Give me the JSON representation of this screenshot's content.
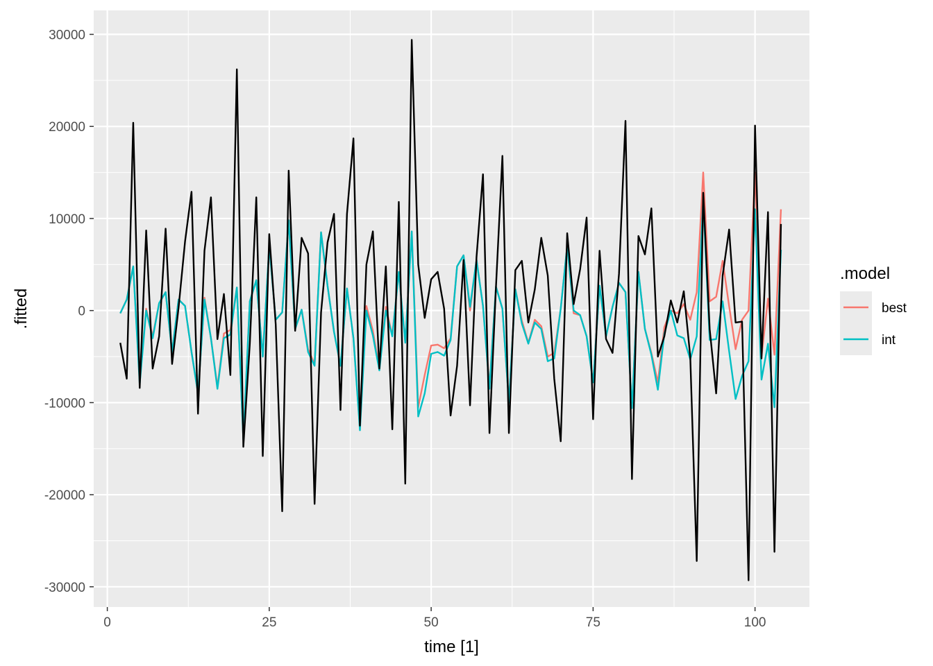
{
  "chart_data": {
    "type": "line",
    "xlabel": "time [1]",
    "ylabel": ".fitted",
    "xlim": [
      -2.1,
      108.4
    ],
    "ylim": [
      -32200,
      32600
    ],
    "x_ticks": [
      0,
      25,
      50,
      75,
      100
    ],
    "x_tick_labels": [
      "0",
      "25",
      "50",
      "75",
      "100"
    ],
    "y_ticks": [
      -30000,
      -20000,
      -10000,
      0,
      10000,
      20000,
      30000
    ],
    "y_tick_labels": [
      "-30000",
      "-20000",
      "-10000",
      "0",
      "10000",
      "20000",
      "30000"
    ],
    "grid": true,
    "panel_background": "#ebebeb",
    "legend": {
      "title": ".model",
      "placement": "right",
      "entries": [
        {
          "label": "best",
          "color": "#f8766d"
        },
        {
          "label": "int",
          "color": "#00bfc4"
        }
      ]
    },
    "x_start": 2,
    "series": [
      {
        "name": "best",
        "color": "#f8766d",
        "values": [
          -300,
          1200,
          4800,
          -7500,
          200,
          -2800,
          800,
          2000,
          -4500,
          1200,
          500,
          -4500,
          -9000,
          1400,
          -3000,
          -8300,
          -2500,
          -2100,
          2500,
          -14000,
          1000,
          3300,
          -5000,
          7000,
          -1000,
          -200,
          9800,
          -2000,
          100,
          -4200,
          -5800,
          8500,
          2700,
          -2300,
          -6000,
          2400,
          -3000,
          -12700,
          500,
          -2200,
          -6300,
          400,
          -2700,
          4200,
          -3400,
          8600,
          -10500,
          -7000,
          -3800,
          -3700,
          -4100,
          -3000,
          4800,
          6000,
          0,
          5500,
          500,
          -8200,
          2600,
          200,
          -10000,
          2300,
          -1100,
          -3500,
          -1000,
          -1700,
          -5000,
          -4600,
          200,
          7000,
          -300,
          -500,
          -2800,
          -7800,
          2700,
          -2800,
          400,
          3000,
          2000,
          -10600,
          4200,
          -2000,
          -4600,
          -7800,
          -1800,
          0,
          -300,
          700,
          -1000,
          2000,
          15000,
          1000,
          1500,
          5400,
          500,
          -4200,
          -1000,
          0,
          15000,
          -5000,
          1300,
          -4800,
          11000
        ]
      },
      {
        "name": "int",
        "color": "#00bfc4",
        "values": [
          -300,
          1200,
          4800,
          -8000,
          0,
          -3000,
          800,
          2000,
          -4500,
          1200,
          500,
          -4500,
          -9000,
          1200,
          -3000,
          -8500,
          -3000,
          -2600,
          2500,
          -14000,
          1000,
          3300,
          -5000,
          7000,
          -1000,
          -200,
          9800,
          -2000,
          100,
          -4500,
          -6000,
          8500,
          2700,
          -2300,
          -6000,
          2400,
          -3000,
          -13000,
          0,
          -2700,
          -6500,
          0,
          -2800,
          4200,
          -3500,
          8600,
          -11500,
          -9000,
          -4700,
          -4500,
          -4900,
          -3200,
          4800,
          6000,
          400,
          5500,
          500,
          -8500,
          2600,
          200,
          -10000,
          2300,
          -1400,
          -3600,
          -1300,
          -2000,
          -5500,
          -5200,
          200,
          7000,
          0,
          -500,
          -2800,
          -7800,
          2700,
          -2800,
          400,
          3000,
          2000,
          -10600,
          4200,
          -2000,
          -4800,
          -8600,
          -2500,
          0,
          -2700,
          -3000,
          -5300,
          -2800,
          12000,
          -3200,
          -3100,
          1000,
          -4400,
          -9600,
          -7100,
          -5500,
          11000,
          -7500,
          -3600,
          -10500,
          6600
        ]
      },
      {
        "name": "",
        "color": "#000000",
        "values": [
          -3500,
          -7400,
          20400,
          -8400,
          8700,
          -6300,
          -2800,
          8900,
          -5800,
          300,
          7500,
          12900,
          -11200,
          6500,
          12300,
          -3100,
          1800,
          -7000,
          26200,
          -14800,
          -3600,
          12300,
          -15800,
          8300,
          -1500,
          -21800,
          15200,
          -2200,
          7900,
          6200,
          -21000,
          -200,
          7400,
          10500,
          -10800,
          10500,
          18700,
          -12500,
          5000,
          8600,
          -6300,
          4800,
          -12900,
          11800,
          -18800,
          29400,
          5000,
          -800,
          3400,
          4200,
          200,
          -11400,
          -6000,
          5500,
          -10300,
          5800,
          14800,
          -13300,
          2500,
          16800,
          -13300,
          4400,
          5400,
          -1300,
          2300,
          7900,
          3800,
          -7400,
          -14200,
          8400,
          700,
          4500,
          10100,
          -11800,
          6500,
          -3100,
          -4600,
          4000,
          20600,
          -18300,
          8100,
          6100,
          11100,
          -5000,
          -2800,
          1100,
          -1300,
          2100,
          -5000,
          -27200,
          12800,
          -2000,
          -9000,
          3800,
          8800,
          -1300,
          -1200,
          -29300,
          20100,
          -5200,
          10700,
          -26200,
          9400
        ]
      }
    ]
  }
}
